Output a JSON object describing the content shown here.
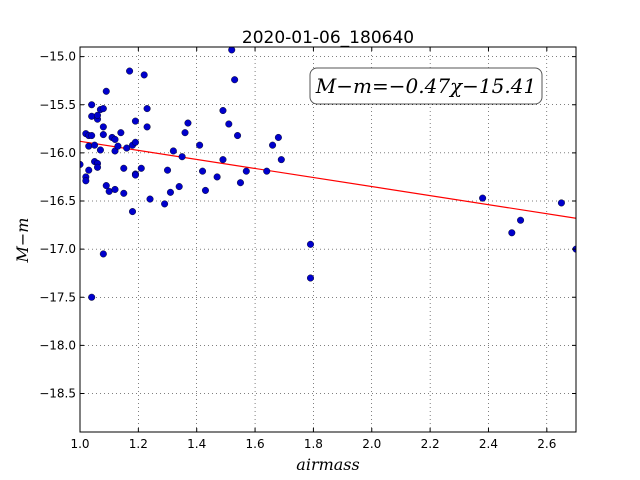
{
  "chart_data": {
    "type": "scatter",
    "title": "2020-01-06_180640",
    "xlabel": "airmass",
    "ylabel": "M−m",
    "xlim": [
      1.0,
      2.7
    ],
    "ylim": [
      -14.9,
      -18.9
    ],
    "y_inverted": true,
    "grid": true,
    "x_ticks": [
      "1.0",
      "1.2",
      "1.4",
      "1.6",
      "1.8",
      "2.0",
      "2.2",
      "2.4",
      "2.6"
    ],
    "y_ticks": [
      "−15.0",
      "−15.5",
      "−16.0",
      "−16.5",
      "−17.0",
      "−17.5",
      "−18.0",
      "−18.5"
    ],
    "fit_annotation": "M−m=−0.47χ−15.41",
    "fit": {
      "slope": -0.47,
      "intercept": -15.41,
      "color": "#ff0000"
    },
    "marker_color": "#0000cc",
    "points": [
      [
        1.0,
        -16.12
      ],
      [
        1.02,
        -15.8
      ],
      [
        1.02,
        -16.25
      ],
      [
        1.02,
        -16.29
      ],
      [
        1.03,
        -16.18
      ],
      [
        1.03,
        -15.82
      ],
      [
        1.03,
        -15.93
      ],
      [
        1.04,
        -15.62
      ],
      [
        1.04,
        -15.5
      ],
      [
        1.04,
        -15.82
      ],
      [
        1.05,
        -15.92
      ],
      [
        1.05,
        -16.09
      ],
      [
        1.04,
        -17.5
      ],
      [
        1.06,
        -15.65
      ],
      [
        1.06,
        -15.61
      ],
      [
        1.06,
        -16.11
      ],
      [
        1.06,
        -16.15
      ],
      [
        1.07,
        -15.97
      ],
      [
        1.07,
        -15.55
      ],
      [
        1.08,
        -15.54
      ],
      [
        1.08,
        -15.73
      ],
      [
        1.08,
        -15.81
      ],
      [
        1.09,
        -15.36
      ],
      [
        1.09,
        -16.34
      ],
      [
        1.1,
        -16.4
      ],
      [
        1.11,
        -15.84
      ],
      [
        1.12,
        -15.86
      ],
      [
        1.12,
        -15.98
      ],
      [
        1.12,
        -16.38
      ],
      [
        1.13,
        -15.93
      ],
      [
        1.14,
        -15.79
      ],
      [
        1.15,
        -16.42
      ],
      [
        1.15,
        -16.16
      ],
      [
        1.16,
        -15.95
      ],
      [
        1.17,
        -15.15
      ],
      [
        1.18,
        -16.61
      ],
      [
        1.18,
        -15.92
      ],
      [
        1.19,
        -16.22
      ],
      [
        1.19,
        -16.23
      ],
      [
        1.19,
        -15.89
      ],
      [
        1.19,
        -15.67
      ],
      [
        1.21,
        -16.16
      ],
      [
        1.22,
        -15.19
      ],
      [
        1.23,
        -15.54
      ],
      [
        1.23,
        -15.73
      ],
      [
        1.24,
        -16.48
      ],
      [
        1.08,
        -17.05
      ],
      [
        1.29,
        -16.53
      ],
      [
        1.31,
        -16.41
      ],
      [
        1.3,
        -16.18
      ],
      [
        1.32,
        -15.98
      ],
      [
        1.34,
        -16.35
      ],
      [
        1.35,
        -16.04
      ],
      [
        1.36,
        -15.79
      ],
      [
        1.37,
        -15.69
      ],
      [
        1.41,
        -15.92
      ],
      [
        1.42,
        -16.19
      ],
      [
        1.43,
        -16.39
      ],
      [
        1.47,
        -16.25
      ],
      [
        1.49,
        -16.07
      ],
      [
        1.49,
        -15.56
      ],
      [
        1.51,
        -15.7
      ],
      [
        1.52,
        -14.93
      ],
      [
        1.53,
        -15.24
      ],
      [
        1.54,
        -15.82
      ],
      [
        1.55,
        -16.31
      ],
      [
        1.57,
        -16.19
      ],
      [
        1.64,
        -16.19
      ],
      [
        1.66,
        -15.92
      ],
      [
        1.68,
        -15.84
      ],
      [
        1.69,
        -16.07
      ],
      [
        1.79,
        -16.95
      ],
      [
        1.79,
        -17.3
      ],
      [
        2.38,
        -16.47
      ],
      [
        2.48,
        -16.83
      ],
      [
        2.51,
        -16.7
      ],
      [
        2.65,
        -16.52
      ],
      [
        2.7,
        -17.0
      ]
    ]
  }
}
